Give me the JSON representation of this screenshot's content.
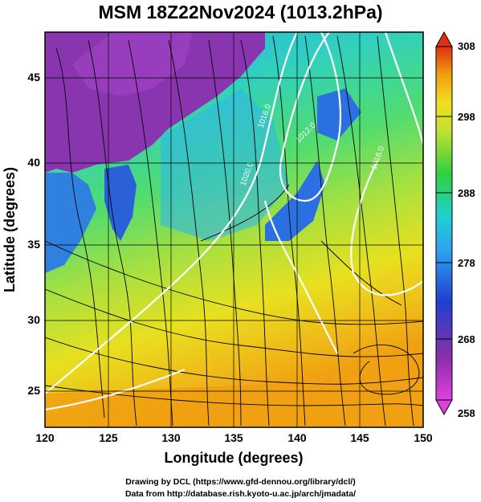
{
  "title": "MSM 18Z22Nov2024 (1013.2hPa)",
  "xlabel": "Longitude (degrees)",
  "ylabel": "Latitude  (degrees)",
  "xticks": [
    "120",
    "125",
    "130",
    "135",
    "140",
    "145",
    "150"
  ],
  "yticks": [
    "25",
    "30",
    "35",
    "40",
    "45"
  ],
  "colorbar_ticks": [
    "308",
    "298",
    "288",
    "278",
    "268",
    "258"
  ],
  "colorbar_range": [
    258,
    308
  ],
  "extent": {
    "lon": [
      120,
      150
    ],
    "lat": [
      22.4,
      47.6
    ]
  },
  "isobar_labels": [
    "1016.0",
    "1012.0",
    "1020.0",
    "1016.0"
  ],
  "footer_line1": "Drawing by DCL (https://www.gfd-dennou.org/library/dcl/)",
  "footer_line2": "Data from http://database.rish.kyoto-u.ac.jp/arch/jmadata/",
  "colors": {
    "purple": "#8a2fa8",
    "blue": "#2e6fe0",
    "cyan": "#20d0d0",
    "green": "#3ed44a",
    "yellow": "#f0e020",
    "orange": "#f0a010",
    "red": "#e03010"
  }
}
